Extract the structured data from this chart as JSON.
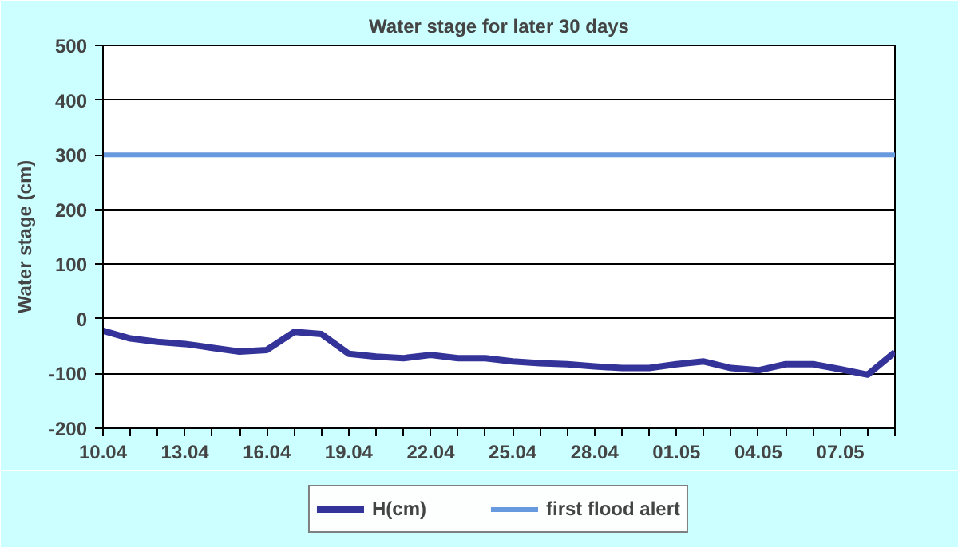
{
  "chart_data": {
    "type": "line",
    "title": "Water stage for later 30 days",
    "ylabel": "Water stage (cm)",
    "categories": [
      "10.04",
      null,
      null,
      "13.04",
      null,
      null,
      "16.04",
      null,
      null,
      "19.04",
      null,
      null,
      "22.04",
      null,
      null,
      "25.04",
      null,
      null,
      "28.04",
      null,
      null,
      "01.05",
      null,
      null,
      "04.05",
      null,
      null,
      "07.05",
      null,
      null
    ],
    "series": [
      {
        "name": "H(cm)",
        "color": "#333399",
        "values": [
          -22,
          -36,
          -42,
          -46,
          -53,
          -60,
          -57,
          -24,
          -28,
          -64,
          -69,
          -72,
          -66,
          -72,
          -72,
          -78,
          -81,
          -83,
          -87,
          -90,
          -90,
          -83,
          -78,
          -90,
          -94,
          -83,
          -83,
          -92,
          -102,
          -61
        ]
      }
    ],
    "ref_lines": [
      {
        "axis": "y",
        "value": 300,
        "label": "first flood alert",
        "color": "#6699dd"
      }
    ],
    "ylim": [
      -200,
      500
    ],
    "yticks": [
      -200,
      -100,
      0,
      100,
      200,
      300,
      400,
      500
    ],
    "grid": "y",
    "legend": "bottom",
    "line_style": "solid",
    "marker": "none"
  }
}
